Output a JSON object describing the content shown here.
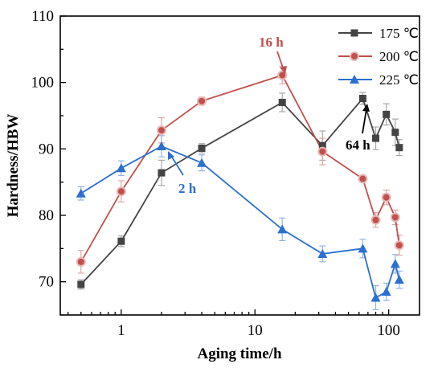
{
  "chart_data": {
    "type": "line",
    "xscale": "log",
    "xlabel": "Aging time/h",
    "ylabel": "Hardness/HBW",
    "xlim": [
      0.35,
      170
    ],
    "ylim": [
      65,
      110
    ],
    "xticks": [
      1,
      10,
      100
    ],
    "xtick_labels": [
      "1",
      "10",
      "100"
    ],
    "yticks": [
      70,
      80,
      90,
      100,
      110
    ],
    "ytick_labels": [
      "70",
      "80",
      "90",
      "100",
      "110"
    ],
    "legend_position": "top-right",
    "series": [
      {
        "name": "175 ℃",
        "color": "#444444",
        "marker": "square",
        "x": [
          0.5,
          1,
          2,
          4,
          16,
          32,
          64,
          80,
          96,
          112,
          120
        ],
        "y": [
          69.6,
          76.1,
          86.4,
          90.1,
          97.0,
          90.5,
          97.6,
          91.6,
          95.2,
          92.5,
          90.2
        ],
        "err": [
          0.7,
          0.8,
          1.9,
          0.7,
          1.4,
          2.2,
          0.9,
          1.7,
          1.6,
          2.0,
          1.2
        ]
      },
      {
        "name": "200 ℃",
        "color": "#c0504d",
        "marker": "circle",
        "x": [
          0.5,
          1,
          2,
          4,
          16,
          32,
          64,
          80,
          96,
          112,
          120
        ],
        "y": [
          73.0,
          83.6,
          92.8,
          97.2,
          101.1,
          89.6,
          85.5,
          79.3,
          82.7,
          79.7,
          75.5
        ],
        "err": [
          1.7,
          1.6,
          1.9,
          0.6,
          1.3,
          2.0,
          0.5,
          1.1,
          1.1,
          1.1,
          1.5
        ]
      },
      {
        "name": "225 ℃",
        "color": "#2b6fd1",
        "marker": "triangle",
        "x": [
          0.5,
          1,
          2,
          4,
          16,
          32,
          64,
          80,
          96,
          112,
          120
        ],
        "y": [
          83.3,
          87.1,
          90.4,
          87.9,
          77.9,
          74.2,
          75.0,
          67.6,
          68.5,
          72.7,
          70.3
        ],
        "err": [
          1.0,
          1.1,
          1.6,
          1.2,
          1.7,
          1.2,
          1.4,
          1.8,
          1.3,
          1.4,
          1.3
        ]
      }
    ],
    "annotations": [
      {
        "text": "16 h",
        "color": "#c0504d",
        "series": 1,
        "point": 4
      },
      {
        "text": "2 h",
        "color": "#2b6fd1",
        "series": 2,
        "point": 2
      },
      {
        "text": "64 h",
        "color": "#000000",
        "series": 0,
        "point": 6
      }
    ]
  }
}
